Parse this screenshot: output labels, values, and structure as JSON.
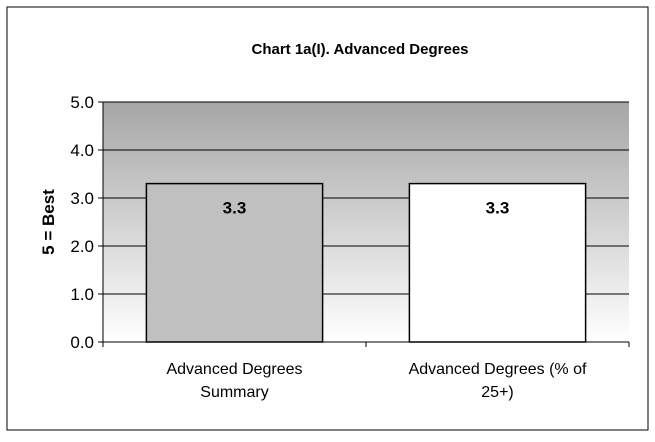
{
  "chart_data": {
    "type": "bar",
    "title": "Chart 1a(I). Advanced Degrees",
    "ylabel": "5 = Best",
    "xlabel": "",
    "ylim": [
      0,
      5
    ],
    "y_ticks": [
      "0.0",
      "1.0",
      "2.0",
      "3.0",
      "4.0",
      "5.0"
    ],
    "y_tick_values": [
      0,
      1,
      2,
      3,
      4,
      5
    ],
    "categories": [
      [
        "Advanced Degrees",
        "Summary"
      ],
      [
        "Advanced Degrees (% of",
        "25+)"
      ]
    ],
    "values": [
      3.3,
      3.3
    ],
    "data_labels": [
      "3.3",
      "3.3"
    ],
    "bar_colors": [
      "#c0c0c0",
      "#ffffff"
    ],
    "grid": true,
    "plot_background": "gradient grey"
  }
}
